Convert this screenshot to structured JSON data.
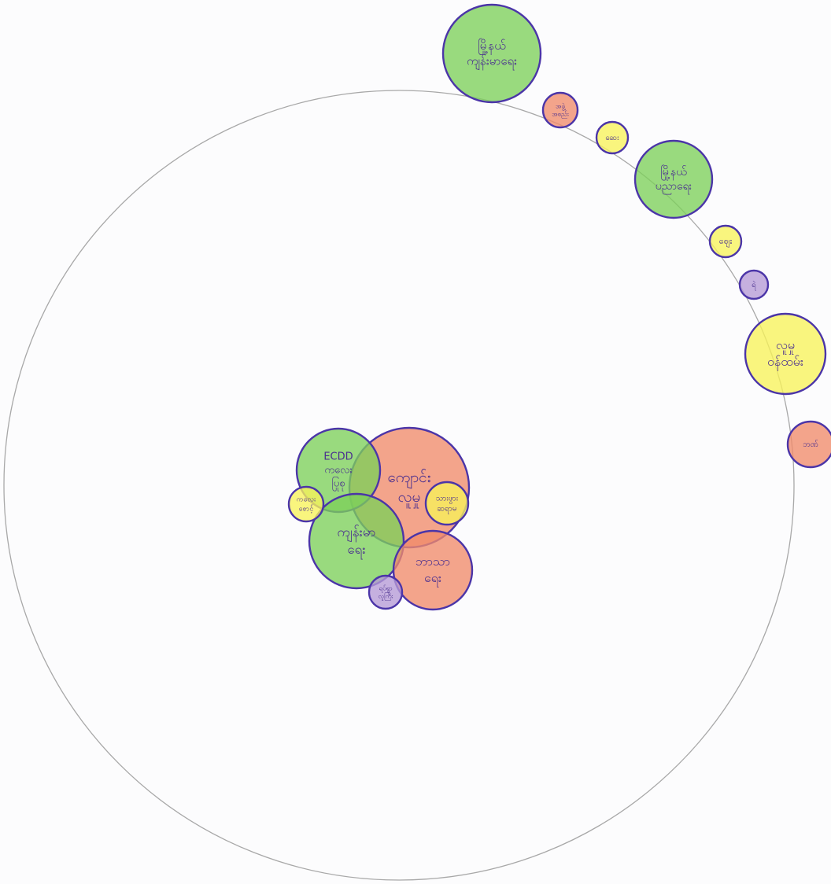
{
  "colors": {
    "paper": "#fcfcfd",
    "boundary": "#a8a8a8",
    "outline": "#4b35a8",
    "text": "#4a2f8f",
    "green": "#7ccf5a",
    "red": "#f08a6a",
    "yellow": "#f7f25a",
    "purple": "#b59ad6"
  },
  "diagram": {
    "boundary_name": "community-boundary",
    "inside": [
      {
        "id": "ecdd",
        "lines": [
          "ECDD",
          "ကလေး",
          "ပြုစု"
        ],
        "color": "green",
        "font": 13
      },
      {
        "id": "school",
        "lines": [
          "ကျောင်း",
          "လူမှု"
        ],
        "color": "red",
        "font": 19
      },
      {
        "id": "small-left",
        "lines": [
          "ကလေး",
          "စောင့်"
        ],
        "color": "yellow",
        "font": 9
      },
      {
        "id": "health",
        "lines": [
          "ကျန်းမာ",
          "ရေး"
        ],
        "color": "green",
        "font": 17
      },
      {
        "id": "small-right",
        "lines": [
          "သားဖွား",
          "ဆရာမ"
        ],
        "color": "yellow",
        "font": 10
      },
      {
        "id": "religion",
        "lines": [
          "ဘာသာ",
          "ရေး"
        ],
        "color": "red",
        "font": 16
      },
      {
        "id": "small-bottom",
        "lines": [
          "ရပ်ရွာ",
          "လူကြီး"
        ],
        "color": "purple",
        "font": 8
      }
    ],
    "outside": [
      {
        "id": "township",
        "lines": [
          "မြို့နယ်",
          "ကျန်းမာရေး"
        ],
        "color": "green",
        "font": 15
      },
      {
        "id": "ngo",
        "lines": [
          "အဖွဲ့",
          "အစည်း"
        ],
        "color": "red",
        "font": 8
      },
      {
        "id": "clinic",
        "lines": [
          "ဆေး"
        ],
        "color": "yellow",
        "font": 10
      },
      {
        "id": "township-edu",
        "lines": [
          "မြို့နယ်",
          "ပညာရေး"
        ],
        "color": "green",
        "font": 14
      },
      {
        "id": "market",
        "lines": [
          "ဈေး"
        ],
        "color": "yellow",
        "font": 11
      },
      {
        "id": "police",
        "lines": [
          "ရဲ"
        ],
        "color": "purple",
        "font": 10
      },
      {
        "id": "social-welfare",
        "lines": [
          "လူမှု",
          "ဝန်ထမ်း"
        ],
        "color": "yellow",
        "font": 16
      },
      {
        "id": "bank",
        "lines": [
          "ဘဏ်"
        ],
        "color": "red",
        "font": 10
      }
    ]
  }
}
